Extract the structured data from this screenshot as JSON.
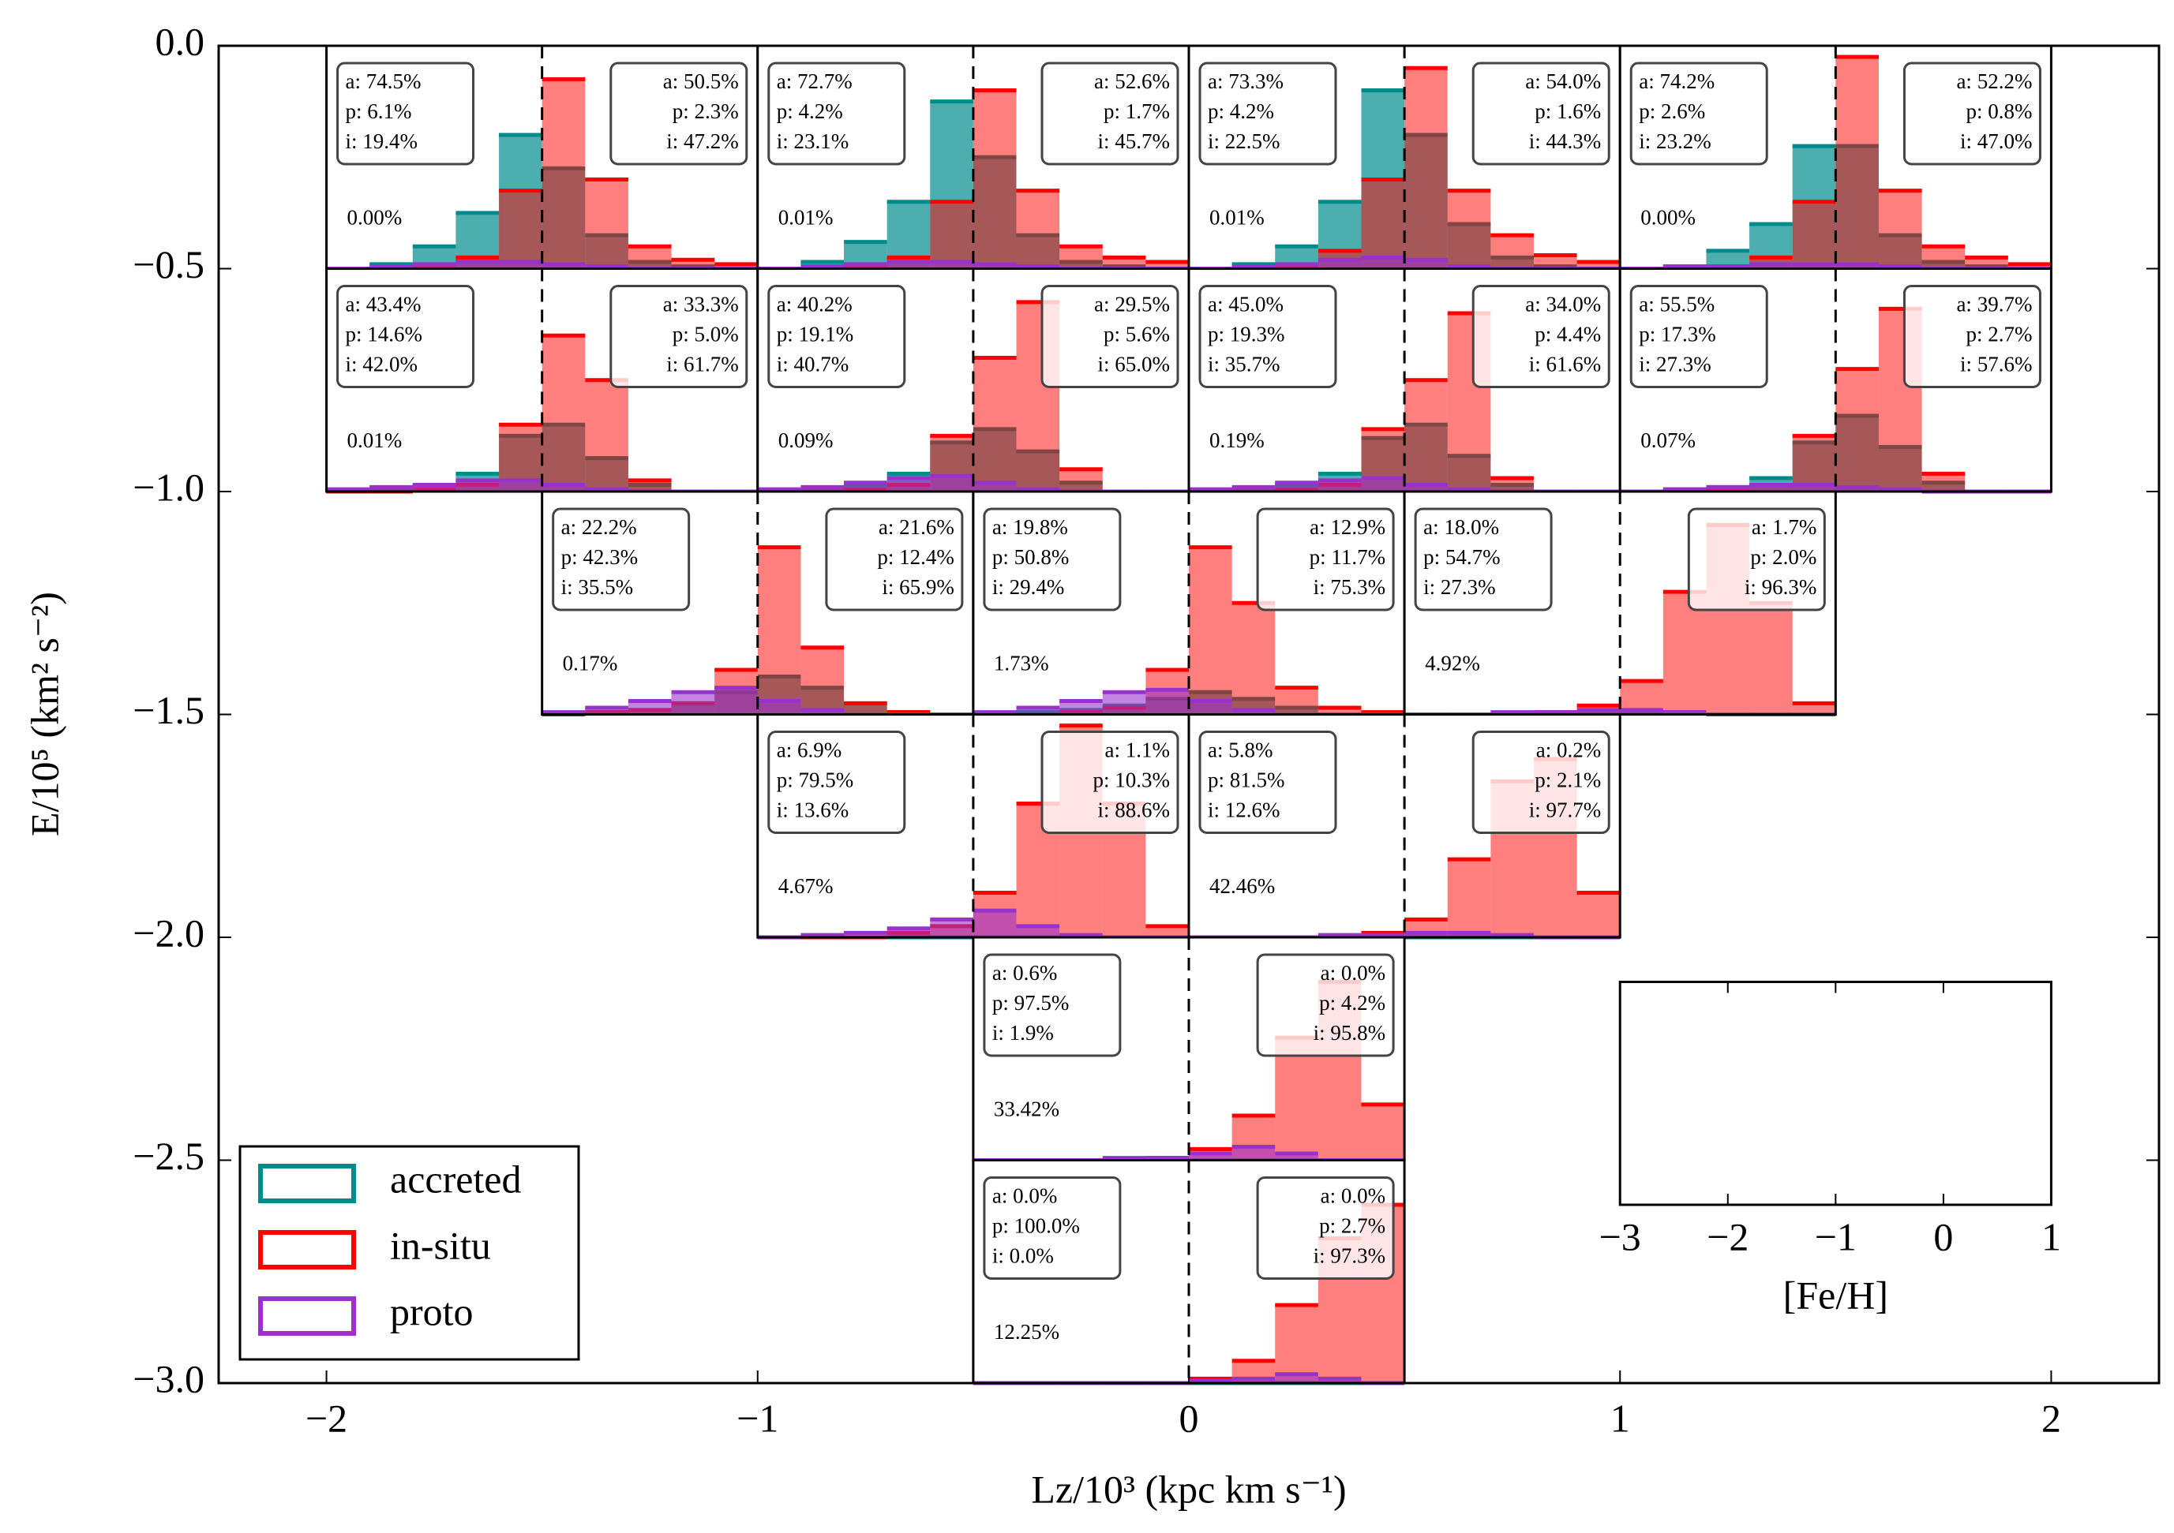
{
  "chart_data": {
    "type": "histogram-grid",
    "xlabel": "Lz/10³ (kpc km s⁻¹)",
    "ylabel": "E/10⁵ (km² s⁻²)",
    "xlim": [
      -2.25,
      2.25
    ],
    "xticks": [
      {
        "value": -2,
        "label": "−2"
      },
      {
        "value": -1,
        "label": "−1"
      },
      0,
      1,
      2
    ],
    "ylim": [
      -3,
      0
    ],
    "yticks": [
      {
        "value": 0,
        "label": "0.0"
      },
      {
        "value": -0.5,
        "label": "−0.5"
      },
      {
        "value": -1,
        "label": "−1.0"
      },
      {
        "value": -1.5,
        "label": "−1.5"
      },
      {
        "value": -2,
        "label": "−2.0"
      },
      {
        "value": -2.5,
        "label": "−2.5"
      },
      {
        "value": -3,
        "label": "−3.0"
      }
    ],
    "series": [
      {
        "name": "accreted",
        "color": "#008b8b"
      },
      {
        "name": "in-situ",
        "color": "#ff0000"
      },
      {
        "name": "proto",
        "color": "#9932cc"
      }
    ],
    "legend": "lower left",
    "panel_axis": {
      "xlim": [
        -3,
        1
      ],
      "xticks": [
        {
          "value": -3,
          "label": "−3"
        },
        {
          "value": -2,
          "label": "−2"
        },
        {
          "value": -1,
          "label": "−1"
        },
        0,
        1
      ],
      "xlabel": "[Fe/H]",
      "divider": -1,
      "ylim": [
        0,
        1
      ],
      "bins": [
        -3,
        -2.6,
        -2.2,
        -1.8,
        -1.4,
        -1,
        -0.6,
        -0.2,
        0.2,
        0.6,
        1
      ],
      "key_lz": [
        1,
        2
      ],
      "key_e": [
        -2.6,
        -2.1
      ]
    },
    "panels": [
      {
        "lz": [
          -2,
          -1
        ],
        "e": [
          -0.5,
          0
        ],
        "total": "0.00%",
        "left": [
          "a: 74.5%",
          "p: 6.1%",
          "i: 19.4%"
        ],
        "right": [
          "a: 50.5%",
          "p: 2.3%",
          "i: 47.2%"
        ],
        "values": [
          [
            0,
            0.02,
            0.1,
            0.25,
            0.6,
            0.45,
            0.15,
            0.03,
            0.01,
            0
          ],
          [
            0,
            0,
            0.01,
            0.05,
            0.35,
            0.85,
            0.4,
            0.1,
            0.04,
            0.02
          ],
          [
            0,
            0.01,
            0.02,
            0.03,
            0.03,
            0.02,
            0.01,
            0,
            0,
            0
          ]
        ]
      },
      {
        "lz": [
          -1,
          0
        ],
        "e": [
          -0.5,
          0
        ],
        "total": "0.01%",
        "left": [
          "a: 72.7%",
          "p: 4.2%",
          "i: 23.1%"
        ],
        "right": [
          "a: 52.6%",
          "p: 1.7%",
          "i: 45.7%"
        ],
        "values": [
          [
            0,
            0.03,
            0.12,
            0.3,
            0.75,
            0.5,
            0.15,
            0.03,
            0.01,
            0
          ],
          [
            0,
            0,
            0.01,
            0.05,
            0.3,
            0.8,
            0.35,
            0.1,
            0.05,
            0.03
          ],
          [
            0,
            0.01,
            0.02,
            0.03,
            0.03,
            0.02,
            0.01,
            0,
            0,
            0
          ]
        ]
      },
      {
        "lz": [
          0,
          1
        ],
        "e": [
          -0.5,
          0
        ],
        "total": "0.01%",
        "left": [
          "a: 73.3%",
          "p: 4.2%",
          "i: 22.5%"
        ],
        "right": [
          "a: 54.0%",
          "p: 1.6%",
          "i: 44.3%"
        ],
        "values": [
          [
            0,
            0.02,
            0.1,
            0.3,
            0.8,
            0.6,
            0.2,
            0.05,
            0.01,
            0
          ],
          [
            0,
            0,
            0.01,
            0.08,
            0.4,
            0.9,
            0.35,
            0.15,
            0.06,
            0.03
          ],
          [
            0,
            0.01,
            0.02,
            0.04,
            0.05,
            0.04,
            0.01,
            0,
            0,
            0
          ]
        ]
      },
      {
        "lz": [
          1,
          2
        ],
        "e": [
          -0.5,
          0
        ],
        "total": "0.00%",
        "left": [
          "a: 74.2%",
          "p: 2.6%",
          "i: 23.2%"
        ],
        "right": [
          "a: 52.2%",
          "p: 0.8%",
          "i: 47.0%"
        ],
        "values": [
          [
            0,
            0.01,
            0.08,
            0.2,
            0.55,
            0.55,
            0.15,
            0.03,
            0.01,
            0
          ],
          [
            0,
            0,
            0.01,
            0.05,
            0.3,
            0.95,
            0.35,
            0.1,
            0.05,
            0.02
          ],
          [
            0,
            0.01,
            0.01,
            0.02,
            0.02,
            0.02,
            0.01,
            0,
            0,
            0
          ]
        ]
      },
      {
        "lz": [
          -2,
          -1
        ],
        "e": [
          -1,
          -0.5
        ],
        "total": "0.01%",
        "left": [
          "a: 43.4%",
          "p: 14.6%",
          "i: 42.0%"
        ],
        "right": [
          "a: 33.3%",
          "p: 5.0%",
          "i: 61.7%"
        ],
        "values": [
          [
            0,
            0.01,
            0.03,
            0.08,
            0.25,
            0.3,
            0.15,
            0.03,
            0,
            0
          ],
          [
            0,
            0,
            0.01,
            0.03,
            0.3,
            0.7,
            0.5,
            0.05,
            0,
            0
          ],
          [
            0.01,
            0.02,
            0.03,
            0.05,
            0.05,
            0.03,
            0.01,
            0,
            0,
            0
          ]
        ]
      },
      {
        "lz": [
          -1,
          0
        ],
        "e": [
          -1,
          -0.5
        ],
        "total": "0.09%",
        "left": [
          "a: 40.2%",
          "p: 19.1%",
          "i: 40.7%"
        ],
        "right": [
          "a: 29.5%",
          "p: 5.6%",
          "i: 65.0%"
        ],
        "values": [
          [
            0,
            0.01,
            0.03,
            0.08,
            0.22,
            0.28,
            0.18,
            0.04,
            0,
            0
          ],
          [
            0,
            0,
            0.01,
            0.03,
            0.25,
            0.6,
            0.85,
            0.1,
            0,
            0
          ],
          [
            0.01,
            0.02,
            0.04,
            0.06,
            0.07,
            0.04,
            0.01,
            0,
            0,
            0
          ]
        ]
      },
      {
        "lz": [
          0,
          1
        ],
        "e": [
          -1,
          -0.5
        ],
        "total": "0.19%",
        "left": [
          "a: 45.0%",
          "p: 19.3%",
          "i: 35.7%"
        ],
        "right": [
          "a: 34.0%",
          "p: 4.4%",
          "i: 61.6%"
        ],
        "values": [
          [
            0,
            0.01,
            0.03,
            0.08,
            0.24,
            0.3,
            0.16,
            0.03,
            0,
            0
          ],
          [
            0,
            0,
            0.01,
            0.03,
            0.28,
            0.5,
            0.8,
            0.06,
            0,
            0
          ],
          [
            0.01,
            0.02,
            0.04,
            0.05,
            0.06,
            0.03,
            0.01,
            0,
            0,
            0
          ]
        ]
      },
      {
        "lz": [
          1,
          2
        ],
        "e": [
          -1,
          -0.5
        ],
        "total": "0.07%",
        "left": [
          "a: 55.5%",
          "p: 17.3%",
          "i: 27.3%"
        ],
        "right": [
          "a: 39.7%",
          "p: 2.7%",
          "i: 57.6%"
        ],
        "values": [
          [
            0,
            0.01,
            0.02,
            0.06,
            0.22,
            0.34,
            0.2,
            0.04,
            0,
            0
          ],
          [
            0,
            0,
            0.01,
            0.03,
            0.25,
            0.55,
            0.82,
            0.08,
            0,
            0
          ],
          [
            0,
            0.01,
            0.02,
            0.03,
            0.03,
            0.02,
            0.01,
            0,
            0,
            0
          ]
        ]
      },
      {
        "lz": [
          -1.5,
          -0.5
        ],
        "e": [
          -1.5,
          -1
        ],
        "total": "0.17%",
        "left": [
          "a: 22.2%",
          "p: 42.3%",
          "i: 35.5%"
        ],
        "right": [
          "a: 21.6%",
          "p: 12.4%",
          "i: 65.9%"
        ],
        "values": [
          [
            0,
            0.01,
            0.02,
            0.05,
            0.1,
            0.17,
            0.12,
            0.05,
            0.01,
            0
          ],
          [
            0,
            0.01,
            0.02,
            0.05,
            0.2,
            0.75,
            0.3,
            0.05,
            0.01,
            0
          ],
          [
            0.01,
            0.03,
            0.06,
            0.1,
            0.12,
            0.06,
            0.02,
            0,
            0,
            0
          ]
        ]
      },
      {
        "lz": [
          -0.5,
          0.5
        ],
        "e": [
          -1.5,
          -1
        ],
        "total": "1.73%",
        "left": [
          "a: 19.8%",
          "p: 50.8%",
          "i: 29.4%"
        ],
        "right": [
          "a: 12.9%",
          "p: 11.7%",
          "i: 75.3%"
        ],
        "values": [
          [
            0,
            0.01,
            0.02,
            0.04,
            0.07,
            0.1,
            0.07,
            0.03,
            0,
            0
          ],
          [
            0,
            0,
            0.01,
            0.03,
            0.2,
            0.75,
            0.5,
            0.12,
            0.03,
            0.01
          ],
          [
            0.01,
            0.03,
            0.06,
            0.1,
            0.11,
            0.06,
            0.02,
            0,
            0,
            0
          ]
        ]
      },
      {
        "lz": [
          0.5,
          1.5
        ],
        "e": [
          -1.5,
          -1
        ],
        "total": "4.92%",
        "left": [
          "a: 18.0%",
          "p: 54.7%",
          "i: 27.3%"
        ],
        "right": [
          "a: 1.7%",
          "p: 2.0%",
          "i: 96.3%"
        ],
        "values": [
          [
            0,
            0,
            0,
            0,
            0.01,
            0.01,
            0.01,
            0,
            0,
            0
          ],
          [
            0,
            0,
            0,
            0.01,
            0.04,
            0.15,
            0.55,
            0.85,
            0.5,
            0.05
          ],
          [
            0,
            0,
            0.01,
            0.01,
            0.02,
            0.02,
            0.01,
            0,
            0,
            0
          ]
        ]
      },
      {
        "lz": [
          -1,
          0
        ],
        "e": [
          -2,
          -1.5
        ],
        "total": "4.67%",
        "left": [
          "a: 6.9%",
          "p: 79.5%",
          "i: 13.6%"
        ],
        "right": [
          "a: 1.1%",
          "p: 10.3%",
          "i: 88.6%"
        ],
        "values": [
          [
            0,
            0,
            0,
            0,
            0,
            0,
            0,
            0,
            0,
            0
          ],
          [
            0,
            0,
            0,
            0.02,
            0.05,
            0.2,
            0.6,
            0.95,
            0.6,
            0.05
          ],
          [
            0,
            0.01,
            0.02,
            0.04,
            0.08,
            0.12,
            0.05,
            0.01,
            0,
            0
          ]
        ]
      },
      {
        "lz": [
          0,
          1
        ],
        "e": [
          -2,
          -1.5
        ],
        "total": "42.46%",
        "left": [
          "a: 5.8%",
          "p: 81.5%",
          "i: 12.6%"
        ],
        "right": [
          "a: 0.2%",
          "p: 2.1%",
          "i: 97.7%"
        ],
        "values": [
          [
            0,
            0,
            0,
            0,
            0,
            0,
            0,
            0,
            0,
            0
          ],
          [
            0,
            0,
            0,
            0,
            0.02,
            0.08,
            0.35,
            0.7,
            0.8,
            0.2
          ],
          [
            0,
            0,
            0,
            0.01,
            0.01,
            0.02,
            0.02,
            0.01,
            0,
            0
          ]
        ]
      },
      {
        "lz": [
          -0.5,
          0.5
        ],
        "e": [
          -2.5,
          -2
        ],
        "total": "33.42%",
        "left": [
          "a: 0.6%",
          "p: 97.5%",
          "i: 1.9%"
        ],
        "right": [
          "a: 0.0%",
          "p: 4.2%",
          "i: 95.8%"
        ],
        "values": [
          [
            0,
            0,
            0,
            0,
            0,
            0,
            0,
            0,
            0,
            0
          ],
          [
            0,
            0,
            0,
            0,
            0.01,
            0.05,
            0.2,
            0.55,
            0.8,
            0.25
          ],
          [
            0,
            0,
            0,
            0.01,
            0.01,
            0.03,
            0.06,
            0.03,
            0,
            0
          ]
        ]
      },
      {
        "lz": [
          -0.5,
          0.5
        ],
        "e": [
          -3,
          -2.5
        ],
        "total": "12.25%",
        "left": [
          "a: 0.0%",
          "p: 100.0%",
          "i: 0.0%"
        ],
        "right": [
          "a: 0.0%",
          "p: 2.7%",
          "i: 97.3%"
        ],
        "values": [
          [
            0,
            0,
            0,
            0,
            0,
            0,
            0,
            0,
            0,
            0
          ],
          [
            0,
            0,
            0,
            0,
            0,
            0.02,
            0.1,
            0.35,
            0.65,
            0.8
          ],
          [
            0,
            0,
            0,
            0,
            0,
            0.01,
            0.02,
            0.04,
            0.02,
            0
          ]
        ]
      }
    ]
  }
}
